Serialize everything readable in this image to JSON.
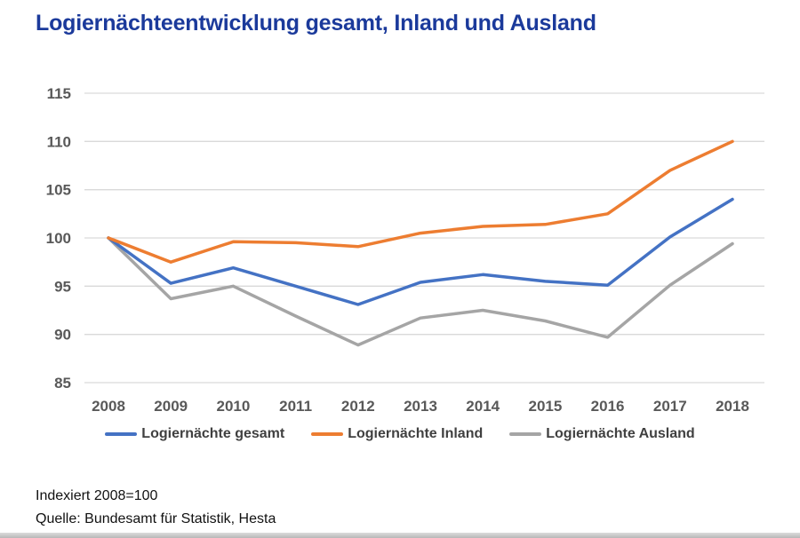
{
  "header": {
    "title": "Logiernächteentwicklung gesamt, Inland und Ausland",
    "title_color": "#1B3A9B"
  },
  "chart_data": {
    "type": "line",
    "title": "Logiernächteentwicklung gesamt, Inland und Ausland",
    "x": [
      2008,
      2009,
      2010,
      2011,
      2012,
      2013,
      2014,
      2015,
      2016,
      2017,
      2018
    ],
    "series": [
      {
        "name": "Logiernächte gesamt",
        "color": "#4472C4",
        "values": [
          100,
          95.3,
          96.9,
          95.0,
          93.1,
          95.4,
          96.2,
          95.5,
          95.1,
          100.1,
          104.0
        ]
      },
      {
        "name": "Logiernächte Inland",
        "color": "#ED7D31",
        "values": [
          100,
          97.5,
          99.6,
          99.5,
          99.1,
          100.5,
          101.2,
          101.4,
          102.5,
          107.0,
          110.0
        ]
      },
      {
        "name": "Logiernächte Ausland",
        "color": "#A5A5A5",
        "values": [
          100,
          93.7,
          95.0,
          91.9,
          88.9,
          91.7,
          92.5,
          91.4,
          89.7,
          95.1,
          99.4
        ]
      }
    ],
    "ylim": [
      85,
      115
    ],
    "ytick_step": 5,
    "yticks": [
      85,
      90,
      95,
      100,
      105,
      110,
      115
    ],
    "grid": true,
    "legend_position": "bottom",
    "gridline_color": "#D9D9D9",
    "tick_color": "#595959",
    "line_width": 3.5
  },
  "footer": {
    "note": "Indexiert 2008=100",
    "source": "Quelle: Bundesamt für Statistik, Hesta"
  }
}
